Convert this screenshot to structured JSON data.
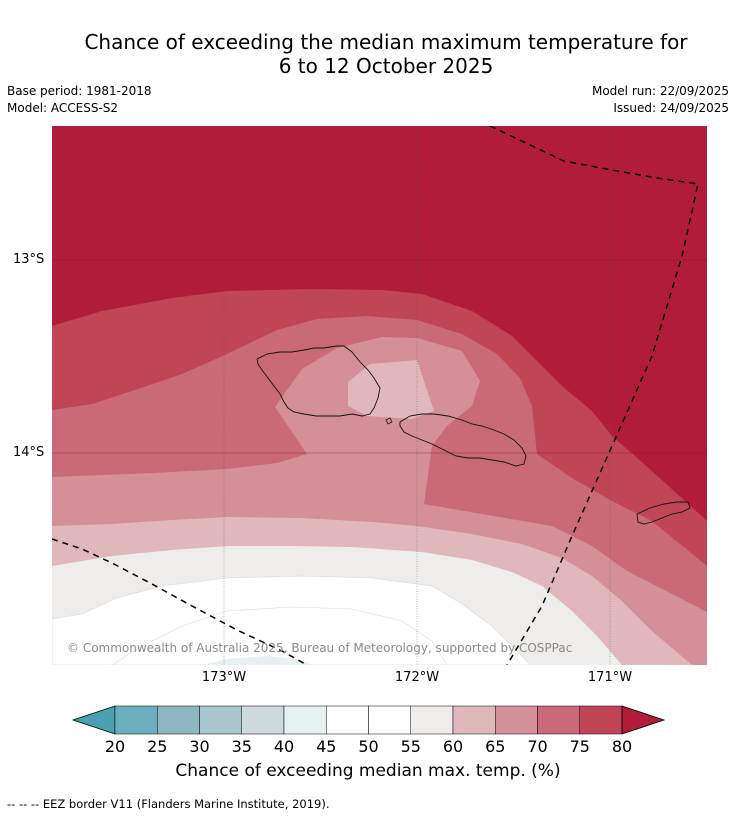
{
  "title": {
    "line1": "Chance of exceeding the median maximum temperature for",
    "line2": "6 to 12 October 2025"
  },
  "meta": {
    "base_period": "Base period: 1981-2018",
    "model": "Model: ACCESS-S2",
    "model_run": "Model run: 22/09/2025",
    "issued": "Issued: 24/09/2025"
  },
  "map": {
    "lat_labels": [
      "13°S",
      "14°S"
    ],
    "lon_labels": [
      "173°W",
      "172°W",
      "171°W"
    ],
    "credit": "© Commonwealth of Australia 2025, Bureau of Meteorology, supported by COSPPac"
  },
  "colorbar": {
    "ticks": [
      "20",
      "25",
      "30",
      "35",
      "40",
      "45",
      "50",
      "55",
      "60",
      "65",
      "70",
      "75",
      "80"
    ],
    "colors": [
      "#4a9fb0",
      "#6aaebf",
      "#8fb7c3",
      "#a8c6cc",
      "#cfd8da",
      "#e8f0f1",
      "#ffffff",
      "#ffffff",
      "#eeedeb",
      "#e0b7bb",
      "#d48f97",
      "#c96a76",
      "#c04555",
      "#b11c39"
    ],
    "title": "Chance of exceeding median max. temp. (%)"
  },
  "legend": {
    "eez": "--  --  -- EEZ border V11 (Flanders Marine Institute, 2019)."
  },
  "palette": {
    "c80": "#b11c39",
    "c75": "#c04555",
    "c70": "#c96a76",
    "c65": "#d48f97",
    "c60": "#e0b7bb",
    "c55": "#eeedeb",
    "c50": "#ffffff",
    "c45": "#e8f0f1"
  }
}
